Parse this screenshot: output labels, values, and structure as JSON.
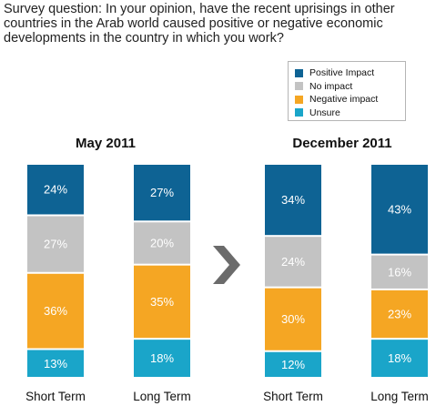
{
  "question": "Survey question: In your opinion, have the recent uprisings in other countries in the Arab world caused positive or negative economic developments in the country in which you work?",
  "colors": {
    "positive": "#0e6394",
    "no_impact": "#c3c3c3",
    "negative": "#f5a623",
    "unsure": "#1aa5c9",
    "arrow": "#6b6b6b"
  },
  "legend": [
    {
      "label": "Positive Impact",
      "color_key": "positive"
    },
    {
      "label": "No impact",
      "color_key": "no_impact"
    },
    {
      "label": "Negative impact",
      "color_key": "negative"
    },
    {
      "label": "Unsure",
      "color_key": "unsure"
    }
  ],
  "chart_data": [
    {
      "type": "bar",
      "stacked": true,
      "title": "May 2011",
      "categories": [
        "Short Term",
        "Long Term"
      ],
      "series": [
        {
          "name": "Unsure",
          "values": [
            13,
            18
          ],
          "labels": [
            "13%",
            "18%"
          ]
        },
        {
          "name": "Negative impact",
          "values": [
            36,
            35
          ],
          "labels": [
            "36%",
            "35%"
          ]
        },
        {
          "name": "No impact",
          "values": [
            27,
            20
          ],
          "labels": [
            "27%",
            "20%"
          ]
        },
        {
          "name": "Positive Impact",
          "values": [
            24,
            27
          ],
          "labels": [
            "24%",
            "27%"
          ]
        }
      ]
    },
    {
      "type": "bar",
      "stacked": true,
      "title": "December 2011",
      "categories": [
        "Short Term",
        "Long Term"
      ],
      "series": [
        {
          "name": "Unsure",
          "values": [
            12,
            18
          ],
          "labels": [
            "12%",
            "18%"
          ]
        },
        {
          "name": "Negative impact",
          "values": [
            30,
            23
          ],
          "labels": [
            "30%",
            "23%"
          ]
        },
        {
          "name": "No impact",
          "values": [
            24,
            16
          ],
          "labels": [
            "24%",
            "16%"
          ]
        },
        {
          "name": "Positive Impact",
          "values": [
            34,
            43
          ],
          "labels": [
            "34%",
            "43%"
          ]
        }
      ]
    }
  ]
}
